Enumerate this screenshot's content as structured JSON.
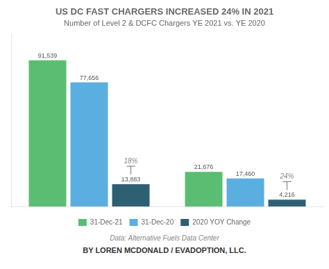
{
  "chart_data": {
    "type": "bar",
    "title": "US DC FAST CHARGERS INCREASED 24% IN 2021",
    "subtitle": "Number of Level 2 & DCFC Chargers YE 2021 vs. YE 2020",
    "categories": [
      null,
      null
    ],
    "series": [
      {
        "name": "31-Dec-21",
        "color": "#5BBD72",
        "values": [
          91539,
          21676
        ],
        "value_labels": [
          "91,539",
          "21,676"
        ]
      },
      {
        "name": "31-Dec-20",
        "color": "#5BAEE0",
        "values": [
          77656,
          17460
        ],
        "value_labels": [
          "77,656",
          "17,460"
        ]
      },
      {
        "name": "2020 YOY Change",
        "color": "#2E6073",
        "values": [
          13883,
          4216
        ],
        "value_labels": [
          "13,883",
          "4,216"
        ]
      }
    ],
    "ylim": [
      0,
      108000
    ],
    "annotations": [
      "18%",
      "24%"
    ],
    "footnote": "Data: Alternative Fuels Data Center",
    "byline": "BY LOREN MCDONALD / EVADOPTION, LLC.",
    "grid": false,
    "legend": "bottom",
    "data_labels": true,
    "tick_labels": false
  }
}
